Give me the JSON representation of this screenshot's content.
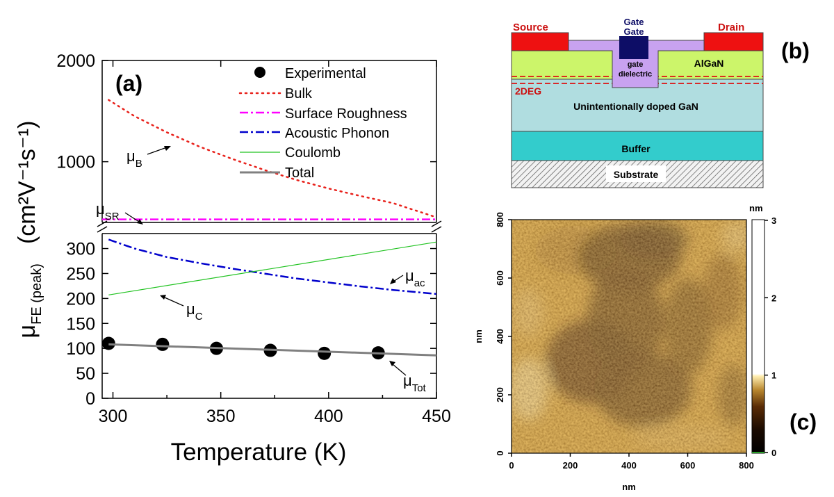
{
  "panels": {
    "a": "(a)",
    "b": "(b)",
    "c": "(c)"
  },
  "chart_data": [
    {
      "type": "line",
      "panel": "a",
      "xlabel": "Temperature (K)",
      "ylabel_main": "μ",
      "ylabel_sub": "FE (peak)",
      "ylabel_unit": "(cm²V⁻¹s⁻¹)",
      "xlim": [
        295,
        450
      ],
      "x_ticks": [
        "300",
        "350",
        "400",
        "450"
      ],
      "y_lower_range": [
        0,
        330
      ],
      "y_lower_ticks": [
        "0",
        "50",
        "100",
        "150",
        "200",
        "250",
        "300"
      ],
      "y_upper_range": [
        400,
        2000
      ],
      "y_upper_ticks": [
        "1000",
        "2000"
      ],
      "legend_position": "top-right",
      "series": [
        {
          "name": "Experimental",
          "style": "marker",
          "color": "#000000",
          "x": [
            298,
            323,
            348,
            373,
            398,
            423
          ],
          "y": [
            110,
            108,
            100,
            96,
            90,
            91
          ]
        },
        {
          "name": "Bulk",
          "style": "dot",
          "color": "#e8211b",
          "segment": "upper",
          "x": [
            298,
            310,
            325,
            340,
            355,
            370,
            385,
            400,
            415,
            430,
            450
          ],
          "y": [
            1610,
            1450,
            1290,
            1150,
            1030,
            920,
            820,
            735,
            660,
            590,
            450
          ]
        },
        {
          "name": "Surface Roughness",
          "style": "dashdot",
          "color": "#ff00ff",
          "segment": "upper",
          "x": [
            295,
            450
          ],
          "y": [
            430,
            430
          ]
        },
        {
          "name": "Acoustic Phonon",
          "style": "dashdot",
          "color": "#0000cc",
          "segment": "lower",
          "x": [
            298,
            310,
            325,
            340,
            355,
            370,
            385,
            400,
            415,
            430,
            450
          ],
          "y": [
            318,
            300,
            283,
            271,
            260,
            250,
            240,
            232,
            224,
            217,
            209
          ]
        },
        {
          "name": "Coulomb",
          "style": "solid",
          "color": "#22c322",
          "segment": "lower",
          "x": [
            298,
            450
          ],
          "y": [
            207,
            313
          ]
        },
        {
          "name": "Total",
          "style": "solid",
          "color": "#808080",
          "segment": "lower",
          "x": [
            298,
            450
          ],
          "y": [
            108,
            86
          ]
        }
      ],
      "annotations": [
        {
          "main": "μ",
          "sub": "B"
        },
        {
          "main": "μ",
          "sub": "SR"
        },
        {
          "main": "μ",
          "sub": "ac"
        },
        {
          "main": "μ",
          "sub": "C"
        },
        {
          "main": "μ",
          "sub": "Tot"
        }
      ]
    },
    {
      "type": "heatmap",
      "panel": "c",
      "xlabel": "nm",
      "ylabel": "nm",
      "xlim": [
        0,
        800
      ],
      "ylim": [
        0,
        800
      ],
      "x_ticks": [
        "0",
        "200",
        "400",
        "600",
        "800"
      ],
      "y_ticks": [
        "0",
        "200",
        "400",
        "600",
        "800"
      ],
      "colorbar_unit": "nm",
      "colorbar_ticks": [
        "0",
        "1",
        "2",
        "3"
      ],
      "colorbar_range": [
        0,
        3
      ]
    }
  ],
  "device": {
    "source": "Source",
    "drain": "Drain",
    "gate_line1": "Gate",
    "gate_line2": "Gate",
    "algan": "AlGaN",
    "gate_dielectric_line1": "gate",
    "gate_dielectric_line2": "dielectric",
    "twodeg": "2DEG",
    "gan": "Unintentionally doped GaN",
    "buffer": "Buffer",
    "substrate": "Substrate",
    "colors": {
      "contact": "#ee1111",
      "gate": "#0d0d66",
      "dielectric": "#c8a2f0",
      "algan": "#ccf56a",
      "gan": "#b0dde0",
      "buffer": "#33cccc",
      "twodeg_line": "#dd1111"
    }
  }
}
